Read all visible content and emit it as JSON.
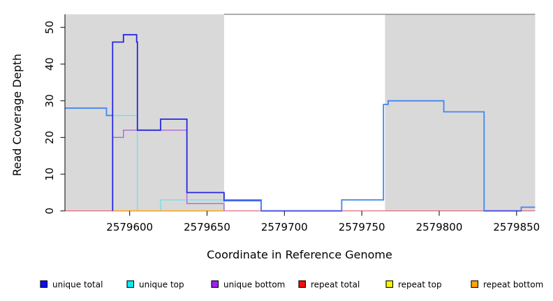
{
  "axes": {
    "x_label": "Coordinate in Reference Genome",
    "y_label": "Read Coverage Depth",
    "x_ticks": [
      2579600,
      2579650,
      2579700,
      2579750,
      2579800,
      2579850
    ],
    "y_ticks": [
      0,
      10,
      20,
      30,
      40,
      50
    ]
  },
  "legend": [
    {
      "label": "unique total",
      "color": "#0d0df5"
    },
    {
      "label": "unique top",
      "color": "#00f0f5"
    },
    {
      "label": "unique bottom",
      "color": "#a020f0"
    },
    {
      "label": "repeat total",
      "color": "#f50d0d"
    },
    {
      "label": "repeat top",
      "color": "#f5f500"
    },
    {
      "label": "repeat bottom",
      "color": "#ffa500"
    }
  ],
  "chart_data": {
    "type": "line",
    "subtype": "step-coverage",
    "title": "",
    "xlabel": "Coordinate in Reference Genome",
    "ylabel": "Read Coverage Depth",
    "x_range": [
      2579558,
      2579862
    ],
    "y_range": [
      0,
      53.5
    ],
    "grid": false,
    "legend_position": "bottom",
    "region_fill": "#d9d9d9",
    "highlight_regions": [
      {
        "from": 2579558,
        "to": 2579661
      },
      {
        "from": 2579765,
        "to": 2579862
      }
    ],
    "gap_top_border": {
      "from": 2579661,
      "to": 2579862,
      "color": "#8f8f8f"
    },
    "series": [
      {
        "name": "repeat total",
        "color": "#e85a72",
        "width": 1.2,
        "steps": [
          [
            2579558,
            0
          ]
        ],
        "end": 2579862
      },
      {
        "name": "repeat top",
        "color": "#f5f500",
        "width": 1.2,
        "steps": [
          [
            2579589,
            0
          ]
        ],
        "end": 2579661
      },
      {
        "name": "unique top",
        "color": "#7cdfe9",
        "width": 1.5,
        "steps": [
          [
            2579585,
            26
          ],
          [
            2579605,
            0
          ],
          [
            2579620,
            3
          ],
          [
            2579661,
            0
          ]
        ],
        "end": 2579661
      },
      {
        "name": "unique bottom",
        "color": "#b36fd9",
        "width": 1.5,
        "steps": [
          [
            2579589,
            0
          ],
          [
            2579589,
            20
          ],
          [
            2579596,
            22
          ],
          [
            2579637,
            2
          ],
          [
            2579661,
            0
          ]
        ],
        "end": 2579661
      },
      {
        "name": "repeat bottom",
        "color": "#ffa41e",
        "width": 1.6,
        "steps": [
          [
            2579589,
            0
          ]
        ],
        "end": 2579661
      },
      {
        "name": "total left",
        "color": "#4186f0",
        "width": 1.8,
        "steps": [
          [
            2579558,
            28
          ],
          [
            2579585,
            26
          ]
        ],
        "end": 2579589
      },
      {
        "name": "unique total",
        "color": "#2727e0",
        "width": 1.8,
        "steps": [
          [
            2579589,
            0
          ],
          [
            2579589,
            46
          ],
          [
            2579596,
            48
          ],
          [
            2579604.5,
            46
          ],
          [
            2579605,
            22
          ],
          [
            2579620,
            25
          ],
          [
            2579637,
            5
          ],
          [
            2579661,
            2.8
          ],
          [
            2579685,
            0
          ]
        ],
        "end": 2579685
      },
      {
        "name": "total right",
        "color": "#4186f0",
        "width": 1.8,
        "steps": [
          [
            2579661,
            3
          ],
          [
            2579685,
            0
          ],
          [
            2579737,
            3
          ],
          [
            2579764,
            29
          ],
          [
            2579767,
            30
          ],
          [
            2579803,
            27
          ],
          [
            2579829,
            0
          ],
          [
            2579853,
            1
          ]
        ],
        "end": 2579862
      },
      {
        "name": "unique zero overlap a",
        "color": "#4b48e0",
        "width": 1.6,
        "steps": [
          [
            2579685,
            0
          ]
        ],
        "end": 2579737
      },
      {
        "name": "unique zero overlap b",
        "color": "#4b48e0",
        "width": 1.6,
        "steps": [
          [
            2579829,
            0
          ]
        ],
        "end": 2579853
      }
    ]
  }
}
